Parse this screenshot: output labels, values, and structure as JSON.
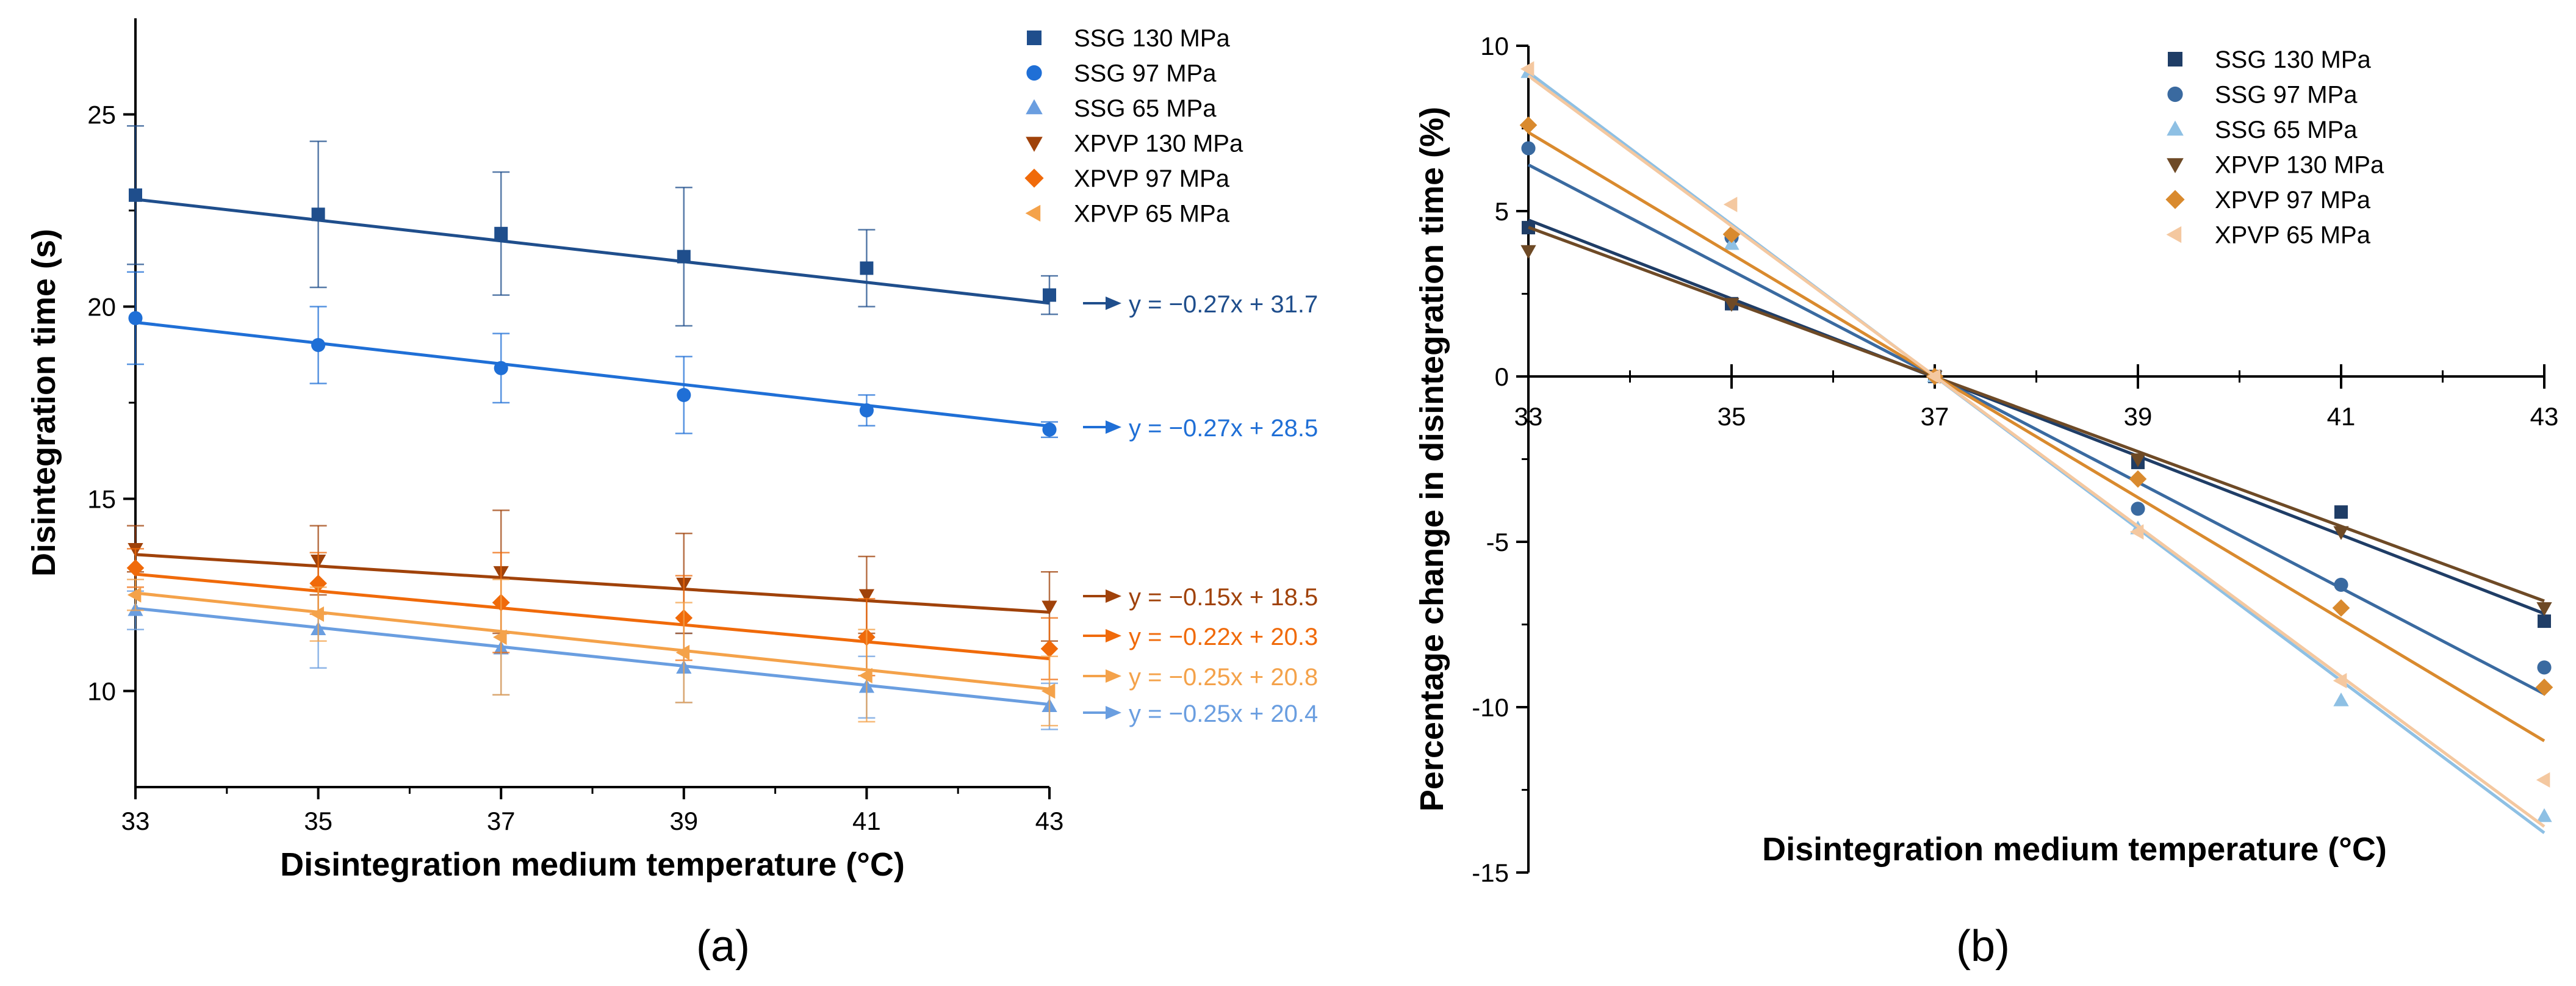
{
  "chart_data": [
    {
      "panel": "a",
      "type": "scatter",
      "panel_label": "(a)",
      "xlabel": "Disintegration medium temperature (°C)",
      "ylabel": "Disintegration time (s)",
      "xlim": [
        33,
        43
      ],
      "ylim": [
        7.5,
        27.5
      ],
      "xticks": [
        33,
        35,
        37,
        39,
        41,
        43
      ],
      "yticks": [
        10,
        15,
        20,
        25
      ],
      "legend_position": "top-right",
      "series": [
        {
          "name": "SSG 130 MPa",
          "marker": "square",
          "color": "#1f4e8c",
          "x": [
            33,
            35,
            37,
            39,
            41,
            43
          ],
          "y": [
            22.9,
            22.4,
            21.9,
            21.3,
            21.0,
            20.3
          ],
          "err": [
            1.8,
            1.9,
            1.6,
            1.8,
            1.0,
            0.5
          ],
          "fit": {
            "slope": -0.27,
            "intercept": 31.7,
            "label": "y = −0.27x + 31.7"
          }
        },
        {
          "name": "SSG 97 MPa",
          "marker": "circle",
          "color": "#1f6fd6",
          "x": [
            33,
            35,
            37,
            39,
            41,
            43
          ],
          "y": [
            19.7,
            19.0,
            18.4,
            17.7,
            17.3,
            16.8
          ],
          "err": [
            1.2,
            1.0,
            0.9,
            1.0,
            0.4,
            0.2
          ],
          "fit": {
            "slope": -0.27,
            "intercept": 28.5,
            "label": "y = −0.27x + 28.5"
          }
        },
        {
          "name": "SSG 65 MPa",
          "marker": "triangle-up",
          "color": "#6a9ee0",
          "x": [
            33,
            35,
            37,
            39,
            41,
            43
          ],
          "y": [
            12.1,
            11.6,
            11.1,
            10.6,
            10.1,
            9.6
          ],
          "err": [
            0.5,
            1.0,
            1.2,
            0.9,
            0.8,
            0.6
          ],
          "fit": {
            "slope": -0.25,
            "intercept": 20.4,
            "label": "y = −0.25x + 20.4"
          }
        },
        {
          "name": "XPVP 130 MPa",
          "marker": "triangle-down",
          "color": "#a0420a",
          "x": [
            33,
            35,
            37,
            39,
            41,
            43
          ],
          "y": [
            13.7,
            13.4,
            13.1,
            12.8,
            12.5,
            12.2
          ],
          "err": [
            0.6,
            0.9,
            1.6,
            1.3,
            1.0,
            0.9
          ],
          "fit": {
            "slope": -0.15,
            "intercept": 18.5,
            "label": "y = −0.15x + 18.5"
          }
        },
        {
          "name": "XPVP 97 MPa",
          "marker": "diamond",
          "color": "#f06a0a",
          "x": [
            33,
            35,
            37,
            39,
            41,
            43
          ],
          "y": [
            13.2,
            12.8,
            12.3,
            11.9,
            11.4,
            11.1
          ],
          "err": [
            0.5,
            0.8,
            1.3,
            1.1,
            1.0,
            0.8
          ],
          "fit": {
            "slope": -0.22,
            "intercept": 20.3,
            "label": "y = −0.22x + 20.3"
          }
        },
        {
          "name": "XPVP 65 MPa",
          "marker": "triangle-left",
          "color": "#f4a24a",
          "x": [
            33,
            35,
            37,
            39,
            41,
            43
          ],
          "y": [
            12.5,
            12.0,
            11.4,
            11.0,
            10.4,
            10.0
          ],
          "err": [
            0.4,
            0.7,
            1.5,
            1.3,
            1.2,
            0.9
          ],
          "fit": {
            "slope": -0.25,
            "intercept": 20.8,
            "label": "y = −0.25x + 20.8"
          }
        }
      ]
    },
    {
      "panel": "b",
      "type": "scatter",
      "panel_label": "(b)",
      "xlabel": "Disintegration medium temperature (°C)",
      "ylabel": "Percentage change in disintegration time (%)",
      "xlim": [
        33,
        43
      ],
      "ylim": [
        -15,
        10
      ],
      "xticks": [
        33,
        35,
        37,
        39,
        41,
        43
      ],
      "yticks": [
        10,
        5,
        0,
        -5,
        -10,
        -15
      ],
      "yticklabels": [
        "10",
        "5",
        "0",
        "-5",
        "-10",
        "-15"
      ],
      "legend_position": "top-center",
      "series": [
        {
          "name": "SSG 130 MPa",
          "marker": "square",
          "color": "#1f3d66",
          "x": [
            33,
            35,
            37,
            39,
            41,
            43
          ],
          "y": [
            4.5,
            2.2,
            0,
            -2.6,
            -4.1,
            -7.4
          ],
          "fit": {
            "slope": -1.19,
            "intercept": 44.0
          }
        },
        {
          "name": "SSG 97 MPa",
          "marker": "circle",
          "color": "#3a6aa0",
          "x": [
            33,
            35,
            37,
            39,
            41,
            43
          ],
          "y": [
            6.9,
            4.2,
            0,
            -4.0,
            -6.3,
            -8.8
          ],
          "fit": {
            "slope": -1.6,
            "intercept": 59.2
          }
        },
        {
          "name": "SSG 65 MPa",
          "marker": "triangle-up",
          "color": "#8ec0e4",
          "x": [
            33,
            35,
            37,
            39,
            41,
            43
          ],
          "y": [
            9.2,
            4.0,
            0,
            -4.6,
            -9.8,
            -13.3
          ],
          "fit": {
            "slope": -2.3,
            "intercept": 85.1
          }
        },
        {
          "name": "XPVP 130 MPa",
          "marker": "triangle-down",
          "color": "#6e4a26",
          "x": [
            33,
            35,
            37,
            39,
            41,
            43
          ],
          "y": [
            3.8,
            2.2,
            0,
            -2.5,
            -4.7,
            -7.0
          ],
          "fit": {
            "slope": -1.13,
            "intercept": 41.8
          }
        },
        {
          "name": "XPVP 97 MPa",
          "marker": "diamond",
          "color": "#d98a2e",
          "x": [
            33,
            35,
            37,
            39,
            41,
            43
          ],
          "y": [
            7.6,
            4.3,
            0,
            -3.1,
            -7.0,
            -9.4
          ],
          "fit": {
            "slope": -1.84,
            "intercept": 68.1
          }
        },
        {
          "name": "XPVP 65 MPa",
          "marker": "triangle-left",
          "color": "#f4c8a0",
          "x": [
            33,
            35,
            37,
            39,
            41,
            43
          ],
          "y": [
            9.3,
            5.2,
            0,
            -4.7,
            -9.2,
            -12.2
          ],
          "fit": {
            "slope": -2.27,
            "intercept": 84.0
          }
        }
      ]
    }
  ]
}
